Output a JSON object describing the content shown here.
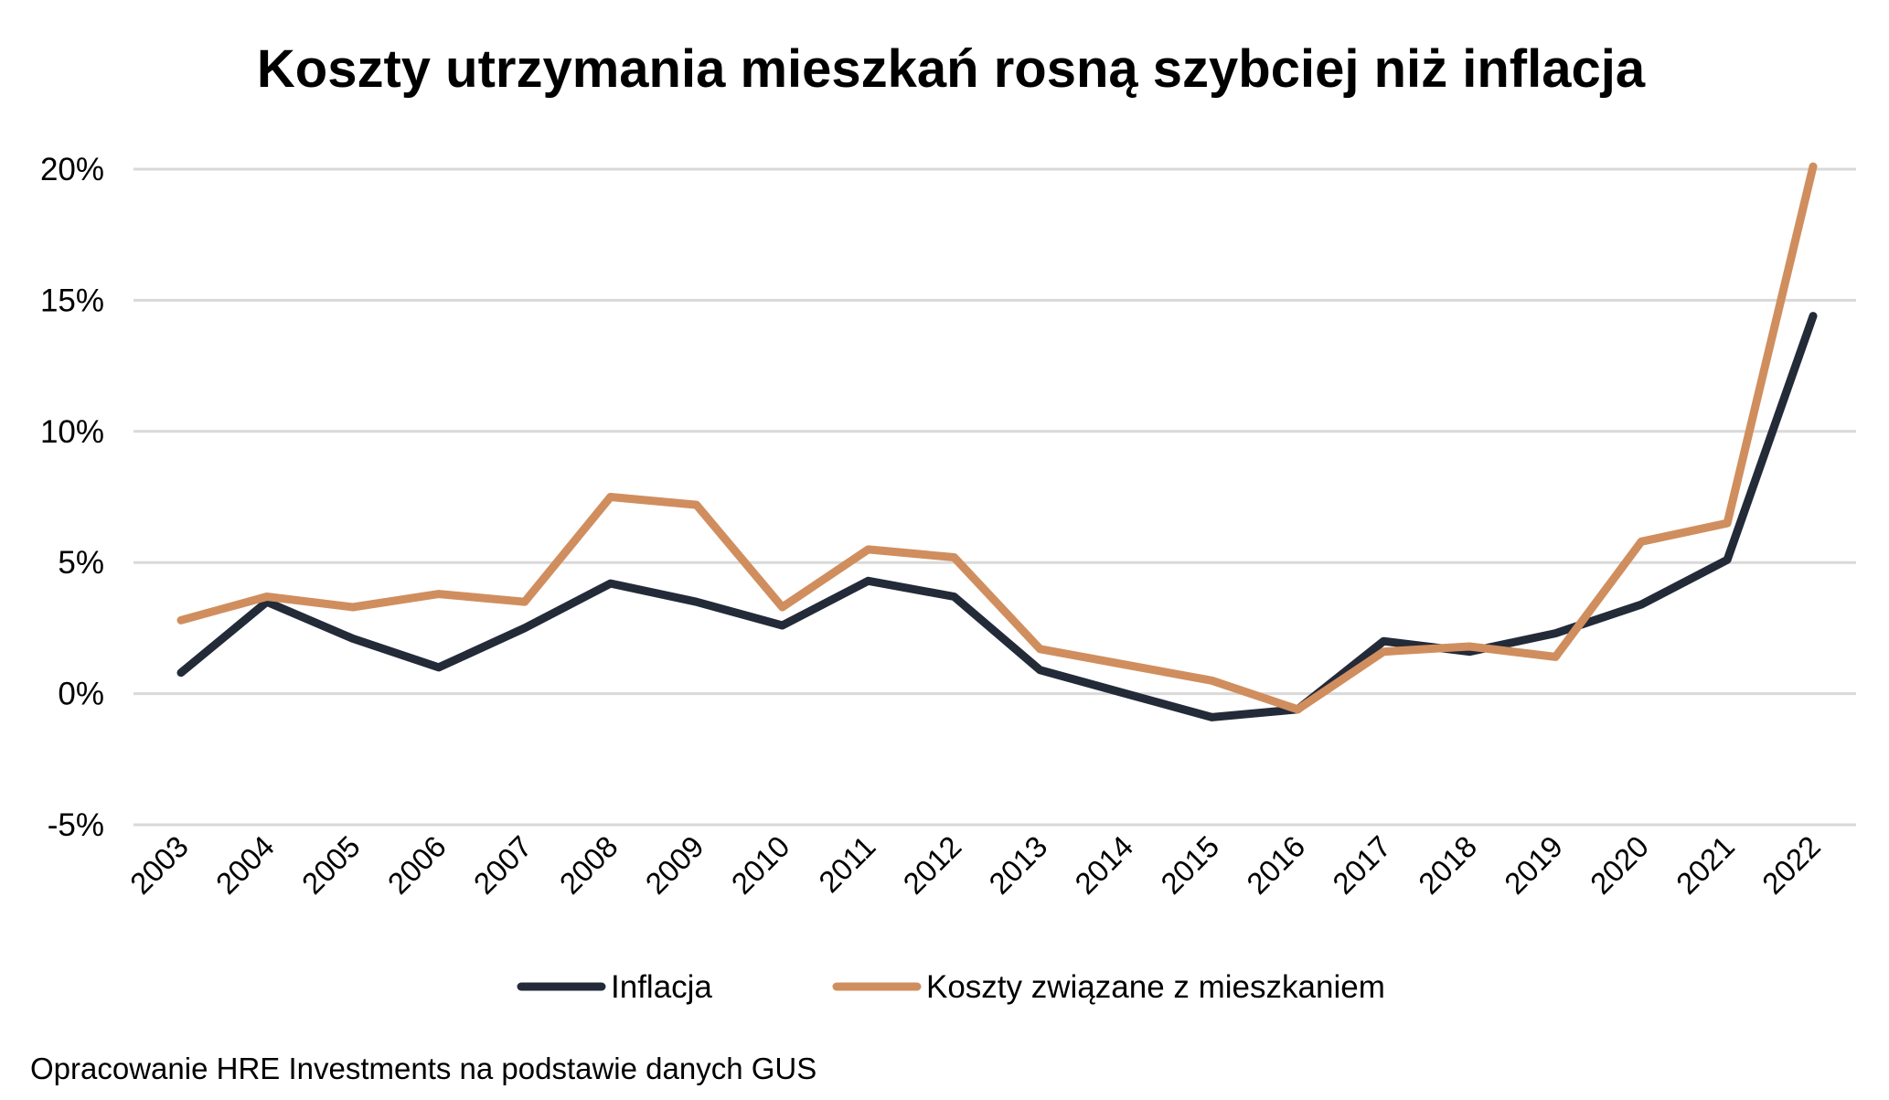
{
  "chart_data": {
    "type": "line",
    "title": "Koszty utrzymania mieszkań rosną szybciej niż inflacja",
    "xlabel": "",
    "ylabel": "",
    "categories": [
      "2003",
      "2004",
      "2005",
      "2006",
      "2007",
      "2008",
      "2009",
      "2010",
      "2011",
      "2012",
      "2013",
      "2014",
      "2015",
      "2016",
      "2017",
      "2018",
      "2019",
      "2020",
      "2021",
      "2022"
    ],
    "ylim": [
      -5,
      20
    ],
    "yticks": [
      -5,
      0,
      5,
      10,
      15,
      20
    ],
    "ytick_labels": [
      "-5%",
      "0%",
      "5%",
      "10%",
      "15%",
      "20%"
    ],
    "grid": true,
    "legend_position": "bottom",
    "series": [
      {
        "name": "Inflacja",
        "color": "#232a38",
        "values": [
          0.8,
          3.5,
          2.1,
          1.0,
          2.5,
          4.2,
          3.5,
          2.6,
          4.3,
          3.7,
          0.9,
          0.0,
          -0.9,
          -0.6,
          2.0,
          1.6,
          2.3,
          3.4,
          5.1,
          14.4
        ]
      },
      {
        "name": "Koszty związane z mieszkaniem",
        "color": "#d08e5e",
        "values": [
          2.8,
          3.7,
          3.3,
          3.8,
          3.5,
          7.5,
          7.2,
          3.3,
          5.5,
          5.2,
          1.7,
          1.1,
          0.5,
          -0.6,
          1.6,
          1.8,
          1.4,
          5.8,
          6.5,
          20.1
        ]
      }
    ],
    "source_note": "Opracowanie HRE Investments na podstawie danych GUS"
  }
}
